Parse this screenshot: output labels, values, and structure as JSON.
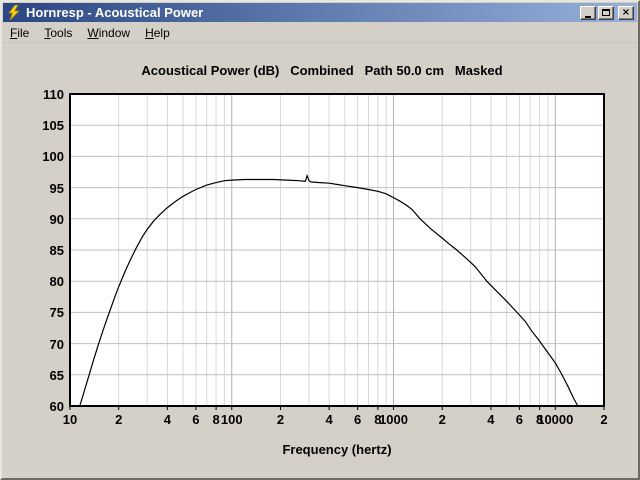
{
  "window": {
    "title": "Hornresp - Acoustical Power",
    "controls": [
      {
        "name": "minimize",
        "glyph": "_"
      },
      {
        "name": "maximize",
        "glyph": "□"
      },
      {
        "name": "close",
        "glyph": "×"
      }
    ]
  },
  "menu": {
    "items": [
      {
        "label": "File",
        "accel": "F"
      },
      {
        "label": "Tools",
        "accel": "T"
      },
      {
        "label": "Window",
        "accel": "W"
      },
      {
        "label": "Help",
        "accel": "H"
      }
    ]
  },
  "icons": {
    "app_icon": "lightning-bolt-icon",
    "app_icon_color": "#f5d417",
    "app_icon_outline": "#b88a00"
  },
  "colors": {
    "window_bg": "#d4d0c8",
    "titlebar_left": "#2b4684",
    "titlebar_right": "#96b1da",
    "title_text": "#ffffff",
    "plot_bg": "#ffffff",
    "plot_border": "#000000",
    "grid_horizontal": "#c0c0c0",
    "grid_minor_vertical": "#d8d8d8",
    "grid_major_vertical": "#b0b0b0",
    "curve": "#000000",
    "label_text": "#000000"
  },
  "chart_data": {
    "type": "line",
    "title": "Acoustical Power (dB)   Combined   Path 50.0 cm   Masked",
    "xlabel": "Frequency (hertz)",
    "ylabel": "",
    "x_scale": "log",
    "xlim": [
      10,
      20000
    ],
    "ylim": [
      60,
      110
    ],
    "y_ticks": [
      60,
      65,
      70,
      75,
      80,
      85,
      90,
      95,
      100,
      105,
      110
    ],
    "x_ticks": [
      {
        "f": 10,
        "label": "10"
      },
      {
        "f": 20,
        "label": "2"
      },
      {
        "f": 40,
        "label": "4"
      },
      {
        "f": 60,
        "label": "6"
      },
      {
        "f": 80,
        "label": "8"
      },
      {
        "f": 100,
        "label": "100"
      },
      {
        "f": 200,
        "label": "2"
      },
      {
        "f": 400,
        "label": "4"
      },
      {
        "f": 600,
        "label": "6"
      },
      {
        "f": 800,
        "label": "8"
      },
      {
        "f": 1000,
        "label": "1000"
      },
      {
        "f": 2000,
        "label": "2"
      },
      {
        "f": 4000,
        "label": "4"
      },
      {
        "f": 6000,
        "label": "6"
      },
      {
        "f": 8000,
        "label": "8"
      },
      {
        "f": 10000,
        "label": "10000"
      },
      {
        "f": 20000,
        "label": "2"
      }
    ],
    "grid": {
      "horizontal_step_db": 5,
      "vertical_minor": "2-9 per decade",
      "vertical_major_decades": [
        100,
        1000,
        10000
      ]
    },
    "legend": null,
    "series": [
      {
        "name": "Combined acoustical power (masked, path 50.0 cm)",
        "points": [
          [
            11.5,
            60.0
          ],
          [
            12,
            61.6
          ],
          [
            13,
            64.6
          ],
          [
            14,
            67.4
          ],
          [
            15,
            69.9
          ],
          [
            16,
            72.1
          ],
          [
            17,
            74.1
          ],
          [
            18,
            75.9
          ],
          [
            19,
            77.6
          ],
          [
            20,
            79.1
          ],
          [
            22,
            81.7
          ],
          [
            24,
            83.8
          ],
          [
            26,
            85.6
          ],
          [
            28,
            87.1
          ],
          [
            30,
            88.3
          ],
          [
            33,
            89.7
          ],
          [
            36,
            90.7
          ],
          [
            40,
            91.8
          ],
          [
            45,
            92.8
          ],
          [
            50,
            93.6
          ],
          [
            55,
            94.2
          ],
          [
            60,
            94.7
          ],
          [
            70,
            95.4
          ],
          [
            80,
            95.8
          ],
          [
            90,
            96.1
          ],
          [
            100,
            96.2
          ],
          [
            120,
            96.3
          ],
          [
            150,
            96.3
          ],
          [
            180,
            96.3
          ],
          [
            220,
            96.2
          ],
          [
            260,
            96.1
          ],
          [
            285,
            96.0
          ],
          [
            292,
            96.9
          ],
          [
            300,
            96.1
          ],
          [
            310,
            95.9
          ],
          [
            350,
            95.8
          ],
          [
            400,
            95.7
          ],
          [
            450,
            95.5
          ],
          [
            500,
            95.3
          ],
          [
            600,
            95.0
          ],
          [
            700,
            94.7
          ],
          [
            800,
            94.4
          ],
          [
            900,
            94.0
          ],
          [
            1000,
            93.4
          ],
          [
            1100,
            92.8
          ],
          [
            1200,
            92.2
          ],
          [
            1300,
            91.5
          ],
          [
            1460,
            90.0
          ],
          [
            1700,
            88.4
          ],
          [
            2000,
            86.9
          ],
          [
            2200,
            86.0
          ],
          [
            2460,
            85.0
          ],
          [
            2800,
            83.7
          ],
          [
            3200,
            82.3
          ],
          [
            3770,
            80.0
          ],
          [
            4300,
            78.5
          ],
          [
            5000,
            76.8
          ],
          [
            5800,
            75.0
          ],
          [
            6500,
            73.6
          ],
          [
            7200,
            71.9
          ],
          [
            7900,
            70.6
          ],
          [
            8800,
            68.9
          ],
          [
            10000,
            66.9
          ],
          [
            10900,
            65.2
          ],
          [
            12000,
            63.1
          ],
          [
            13000,
            61.2
          ],
          [
            13800,
            60.0
          ]
        ]
      }
    ]
  }
}
